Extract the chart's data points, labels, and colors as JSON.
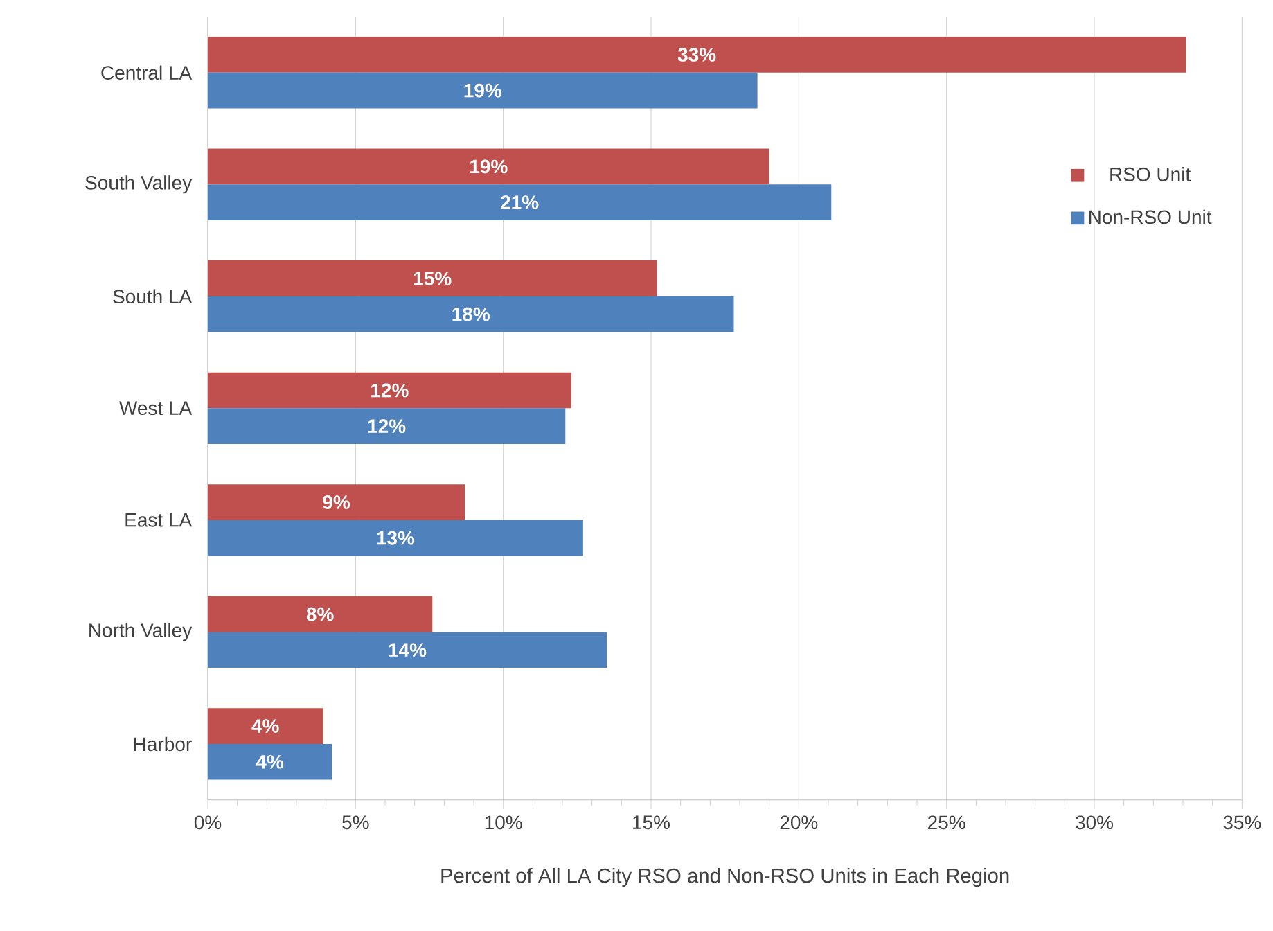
{
  "chart_data": {
    "type": "bar",
    "orientation": "horizontal",
    "xlabel": "Percent of All LA City RSO and Non-RSO Units in Each Region",
    "categories": [
      "Central LA",
      "South Valley",
      "South LA",
      "West LA",
      "East LA",
      "North Valley",
      "Harbor"
    ],
    "series": [
      {
        "name": "RSO Unit",
        "color": "#c0504d",
        "values": [
          33.1,
          19.0,
          15.2,
          12.3,
          8.7,
          7.6,
          3.9
        ],
        "value_labels": [
          "33%",
          "19%",
          "15%",
          "12%",
          "9%",
          "8%",
          "4%"
        ]
      },
      {
        "name": "Non-RSO Unit",
        "color": "#4f81bd",
        "values": [
          18.6,
          21.1,
          17.8,
          12.1,
          12.7,
          13.5,
          4.2
        ],
        "value_labels": [
          "19%",
          "21%",
          "18%",
          "12%",
          "13%",
          "14%",
          "4%"
        ]
      }
    ],
    "xlim": [
      0,
      35
    ],
    "xticks": [
      {
        "value": 0,
        "label": "0%"
      },
      {
        "value": 5,
        "label": "5%"
      },
      {
        "value": 10,
        "label": "10%"
      },
      {
        "value": 15,
        "label": "15%"
      },
      {
        "value": 20,
        "label": "20%"
      },
      {
        "value": 25,
        "label": "25%"
      },
      {
        "value": 30,
        "label": "30%"
      },
      {
        "value": 35,
        "label": "35%"
      }
    ],
    "grid": "x",
    "legend": "right"
  }
}
